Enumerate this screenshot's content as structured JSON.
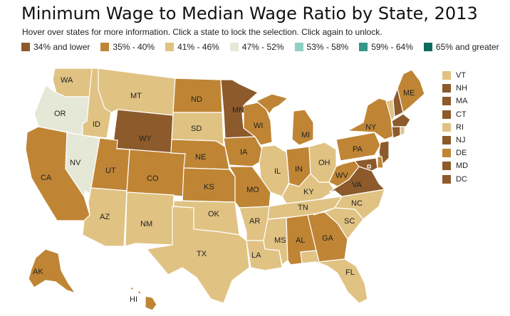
{
  "title": "Minimum Wage to Median Wage Ratio by State, 2013",
  "subtitle": "Hover over states for more information. Click a state to lock the selection. Click again to unlock.",
  "legend": [
    {
      "label": "34% and lower",
      "color": "#8c5a2b"
    },
    {
      "label": "35% - 40%",
      "color": "#bf8535"
    },
    {
      "label": "41% - 46%",
      "color": "#e0c283"
    },
    {
      "label": "47% - 52%",
      "color": "#e6e8d7"
    },
    {
      "label": "53% - 58%",
      "color": "#8fd0c2"
    },
    {
      "label": "59% - 64%",
      "color": "#35968a"
    },
    {
      "label": "65% and greater",
      "color": "#0d6a5f"
    }
  ],
  "states": [
    {
      "abbr": "WA",
      "bin": 2
    },
    {
      "abbr": "OR",
      "bin": 3
    },
    {
      "abbr": "CA",
      "bin": 1
    },
    {
      "abbr": "NV",
      "bin": 3
    },
    {
      "abbr": "ID",
      "bin": 2
    },
    {
      "abbr": "MT",
      "bin": 2
    },
    {
      "abbr": "WY",
      "bin": 0
    },
    {
      "abbr": "UT",
      "bin": 1
    },
    {
      "abbr": "AZ",
      "bin": 2
    },
    {
      "abbr": "CO",
      "bin": 1
    },
    {
      "abbr": "NM",
      "bin": 2
    },
    {
      "abbr": "ND",
      "bin": 1
    },
    {
      "abbr": "SD",
      "bin": 2
    },
    {
      "abbr": "NE",
      "bin": 1
    },
    {
      "abbr": "KS",
      "bin": 1
    },
    {
      "abbr": "OK",
      "bin": 2
    },
    {
      "abbr": "TX",
      "bin": 2
    },
    {
      "abbr": "MN",
      "bin": 0
    },
    {
      "abbr": "IA",
      "bin": 1
    },
    {
      "abbr": "MO",
      "bin": 1
    },
    {
      "abbr": "AR",
      "bin": 2
    },
    {
      "abbr": "LA",
      "bin": 2
    },
    {
      "abbr": "WI",
      "bin": 1
    },
    {
      "abbr": "IL",
      "bin": 2
    },
    {
      "abbr": "MI",
      "bin": 1
    },
    {
      "abbr": "IN",
      "bin": 1
    },
    {
      "abbr": "OH",
      "bin": 2
    },
    {
      "abbr": "KY",
      "bin": 2
    },
    {
      "abbr": "TN",
      "bin": 2
    },
    {
      "abbr": "MS",
      "bin": 2
    },
    {
      "abbr": "AL",
      "bin": 1
    },
    {
      "abbr": "GA",
      "bin": 1
    },
    {
      "abbr": "FL",
      "bin": 2
    },
    {
      "abbr": "SC",
      "bin": 2
    },
    {
      "abbr": "NC",
      "bin": 2
    },
    {
      "abbr": "VA",
      "bin": 0
    },
    {
      "abbr": "WV",
      "bin": 1
    },
    {
      "abbr": "PA",
      "bin": 1
    },
    {
      "abbr": "NY",
      "bin": 1
    },
    {
      "abbr": "ME",
      "bin": 1
    },
    {
      "abbr": "AK",
      "bin": 1
    },
    {
      "abbr": "HI",
      "bin": 1
    }
  ],
  "northeast": [
    {
      "abbr": "VT",
      "bin": 2
    },
    {
      "abbr": "NH",
      "bin": 0
    },
    {
      "abbr": "MA",
      "bin": 0
    },
    {
      "abbr": "CT",
      "bin": 0
    },
    {
      "abbr": "RI",
      "bin": 2
    },
    {
      "abbr": "NJ",
      "bin": 0
    },
    {
      "abbr": "DE",
      "bin": 1
    },
    {
      "abbr": "MD",
      "bin": 0
    },
    {
      "abbr": "DC",
      "bin": 0
    }
  ]
}
